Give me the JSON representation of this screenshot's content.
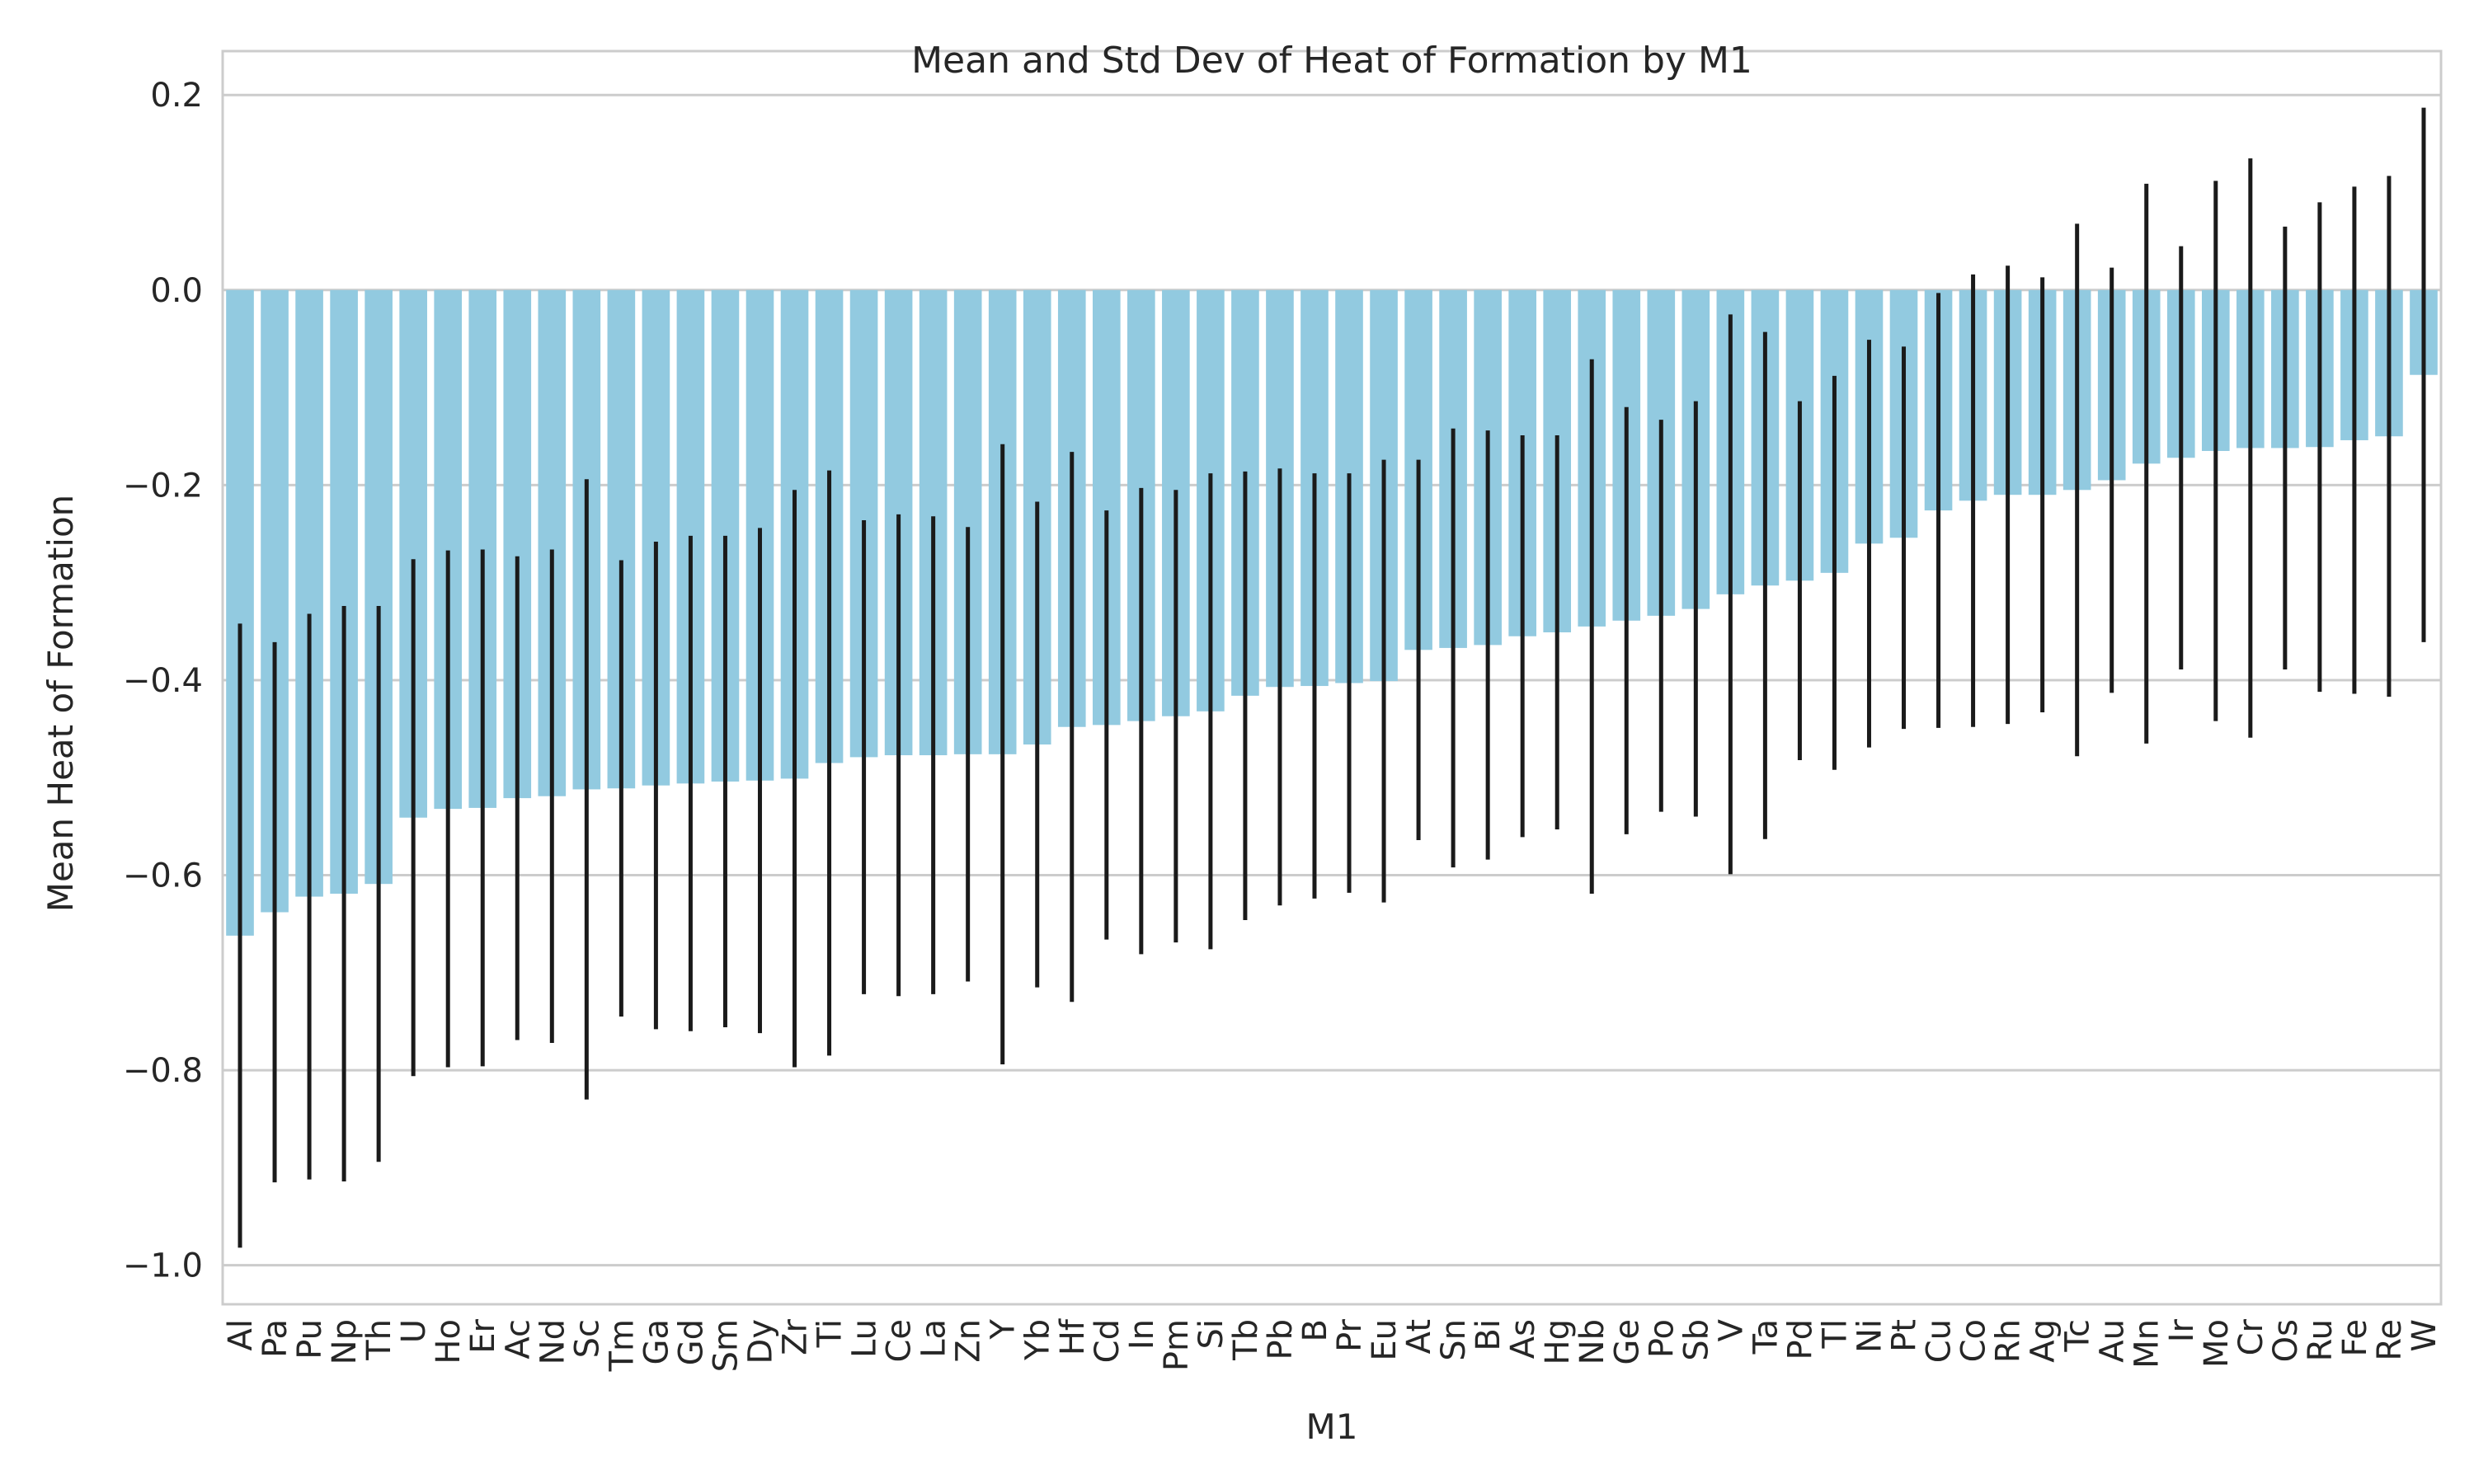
{
  "chart_data": {
    "type": "bar",
    "title": "Mean and Std Dev of Heat of Formation by M1",
    "xlabel": "M1",
    "ylabel": "Mean Heat of Formation",
    "ylim": [
      -1.04,
      0.245
    ],
    "yticks": [
      0.2,
      0.0,
      -0.2,
      -0.4,
      -0.6,
      -0.8,
      -1.0
    ],
    "ytick_labels": [
      "0.2",
      "0.0",
      "−0.2",
      "−0.4",
      "−0.6",
      "−0.8",
      "−1.0"
    ],
    "grid": true,
    "bar_color": "#92cae0",
    "error_color": "#1a1a1a",
    "grid_color": "#cccccc",
    "categories": [
      "Al",
      "Pa",
      "Pu",
      "Np",
      "Th",
      "U",
      "Ho",
      "Er",
      "Ac",
      "Nd",
      "Sc",
      "Tm",
      "Ga",
      "Gd",
      "Sm",
      "Dy",
      "Zr",
      "Ti",
      "Lu",
      "Ce",
      "La",
      "Zn",
      "Y",
      "Yb",
      "Hf",
      "Cd",
      "In",
      "Pm",
      "Si",
      "Tb",
      "Pb",
      "B",
      "Pr",
      "Eu",
      "At",
      "Sn",
      "Bi",
      "As",
      "Hg",
      "Nb",
      "Ge",
      "Po",
      "Sb",
      "V",
      "Ta",
      "Pd",
      "Tl",
      "Ni",
      "Pt",
      "Cu",
      "Co",
      "Rh",
      "Ag",
      "Tc",
      "Au",
      "Mn",
      "Ir",
      "Mo",
      "Cr",
      "Os",
      "Ru",
      "Fe",
      "Re",
      "W"
    ],
    "values": [
      -0.662,
      -0.638,
      -0.622,
      -0.619,
      -0.609,
      -0.541,
      -0.532,
      -0.531,
      -0.521,
      -0.519,
      -0.512,
      -0.511,
      -0.508,
      -0.506,
      -0.504,
      -0.503,
      -0.501,
      -0.485,
      -0.479,
      -0.477,
      -0.477,
      -0.476,
      -0.476,
      -0.466,
      -0.448,
      -0.446,
      -0.442,
      -0.437,
      -0.432,
      -0.416,
      -0.407,
      -0.406,
      -0.403,
      -0.401,
      -0.369,
      -0.367,
      -0.364,
      -0.355,
      -0.351,
      -0.345,
      -0.339,
      -0.334,
      -0.327,
      -0.312,
      -0.303,
      -0.298,
      -0.29,
      -0.26,
      -0.254,
      -0.226,
      -0.216,
      -0.21,
      -0.21,
      -0.205,
      -0.195,
      -0.178,
      -0.172,
      -0.165,
      -0.162,
      -0.162,
      -0.161,
      -0.154,
      -0.15,
      -0.087
    ],
    "std": [
      0.32,
      0.277,
      0.29,
      0.295,
      0.285,
      0.265,
      0.265,
      0.265,
      0.248,
      0.253,
      0.318,
      0.234,
      0.25,
      0.254,
      0.252,
      0.259,
      0.296,
      0.3,
      0.243,
      0.247,
      0.245,
      0.233,
      0.318,
      0.249,
      0.282,
      0.22,
      0.239,
      0.232,
      0.244,
      0.23,
      0.224,
      0.218,
      0.215,
      0.227,
      0.195,
      0.225,
      0.22,
      0.206,
      0.202,
      0.274,
      0.219,
      0.201,
      0.213,
      0.287,
      0.26,
      0.184,
      0.202,
      0.209,
      0.196,
      0.223,
      0.232,
      0.235,
      0.223,
      0.273,
      0.218,
      0.287,
      0.217,
      0.277,
      0.297,
      0.227,
      0.251,
      0.26,
      0.267,
      0.274
    ]
  }
}
